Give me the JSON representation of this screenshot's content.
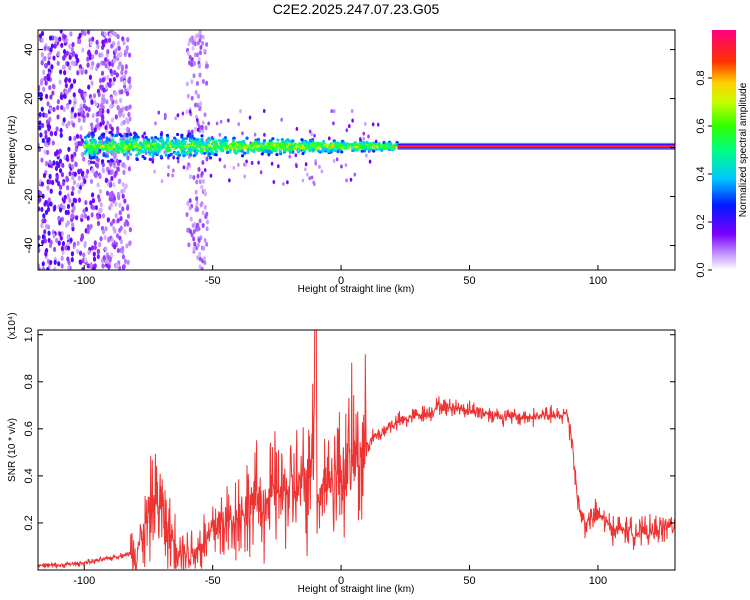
{
  "title": "C2E2.2025.247.07.23.G05",
  "colors": {
    "snr_line": "#ee3333",
    "tone_line": "#00cc44",
    "background": "#ffffff",
    "axis": "#000000"
  },
  "colorbar": {
    "label": "Normalized spectral amplitude",
    "ticks": [
      "0.0",
      "0.2",
      "0.4",
      "0.6",
      "0.8"
    ],
    "tick_values": [
      0,
      0.2,
      0.4,
      0.6,
      0.8
    ],
    "range": [
      0,
      1
    ],
    "colormap": "rainbow (white-violet-blue-cyan-green-yellow-red-magenta)"
  },
  "chart_data": [
    {
      "type": "heatmap",
      "xlabel": "Height of straight line (km)",
      "ylabel": "Frequency (Hz)",
      "xlim": [
        -118,
        130
      ],
      "ylim": [
        -50,
        48
      ],
      "xticks": [
        -100,
        -50,
        0,
        50,
        100
      ],
      "xtick_labels": [
        "-100",
        "-50",
        "0",
        "50",
        "100"
      ],
      "yticks": [
        -40,
        -20,
        0,
        20,
        40
      ],
      "ytick_labels": [
        "-40",
        "-20",
        "0",
        "20",
        "40"
      ],
      "features": {
        "noise_region_x": [
          -118,
          -82
        ],
        "noise_band_x": [
          -60,
          -52
        ],
        "signal_start_x": -100,
        "signal_frequency_hz": 0.5,
        "signal_lock_x": 22,
        "signal_end_x": 130
      }
    },
    {
      "type": "line",
      "xlabel": "Height of straight line (km)",
      "ylabel": "SNR (10 * v/v)",
      "y_multiplier_label": "(x10⁴)",
      "xlim": [
        -118,
        130
      ],
      "ylim": [
        0,
        1.02
      ],
      "xticks": [
        -100,
        -50,
        0,
        50,
        100
      ],
      "xtick_labels": [
        "-100",
        "-50",
        "0",
        "50",
        "100"
      ],
      "yticks": [
        0.2,
        0.4,
        0.6,
        0.8,
        1.0
      ],
      "ytick_labels": [
        "0.2",
        "0.4",
        "0.6",
        "0.8",
        "1.0"
      ],
      "series": [
        {
          "x": [
            -118,
            -110,
            -100,
            -90,
            -82,
            -78,
            -75,
            -73,
            -70,
            -67,
            -63,
            -60,
            -55,
            -52,
            -50,
            -45,
            -42,
            -38,
            -35,
            -32,
            -29,
            -26,
            -22,
            -18,
            -15,
            -12,
            -11,
            -9,
            -6,
            -3,
            0,
            3,
            5,
            8,
            10,
            15,
            20,
            25,
            30,
            35,
            38,
            40,
            45,
            50,
            55,
            60,
            65,
            70,
            75,
            80,
            85,
            88,
            90,
            92,
            93,
            95,
            100,
            105,
            110,
            115,
            120,
            125,
            130
          ],
          "y": [
            0.02,
            0.02,
            0.03,
            0.05,
            0.07,
            0.12,
            0.22,
            0.3,
            0.27,
            0.15,
            0.1,
            0.07,
            0.1,
            0.13,
            0.18,
            0.2,
            0.22,
            0.24,
            0.28,
            0.3,
            0.28,
            0.33,
            0.33,
            0.36,
            0.35,
            0.37,
            0.75,
            0.33,
            0.38,
            0.4,
            0.42,
            0.45,
            0.5,
            0.5,
            0.54,
            0.58,
            0.62,
            0.64,
            0.66,
            0.67,
            0.7,
            0.69,
            0.69,
            0.68,
            0.67,
            0.66,
            0.65,
            0.65,
            0.65,
            0.66,
            0.65,
            0.67,
            0.55,
            0.3,
            0.25,
            0.2,
            0.24,
            0.18,
            0.17,
            0.16,
            0.16,
            0.18,
            0.19
          ]
        }
      ]
    }
  ]
}
